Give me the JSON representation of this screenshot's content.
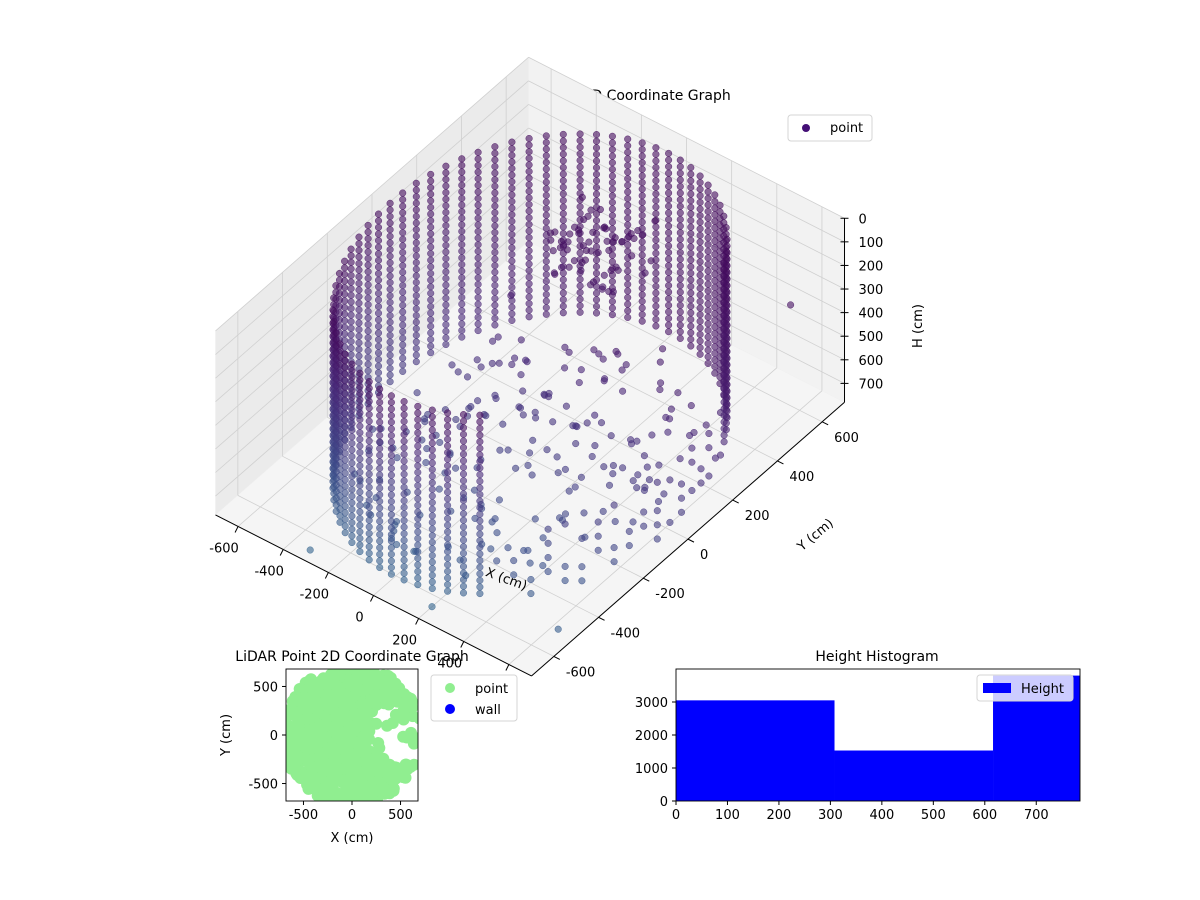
{
  "chart_data": [
    {
      "type": "scatter3d",
      "title": "LiDAR Point 3D Coordinate Graph",
      "xlabel": "X (cm)",
      "ylabel": "Y (cm)",
      "zlabel": "H (cm)",
      "xlim": [
        -700,
        700
      ],
      "ylim": [
        -700,
        700
      ],
      "zlim": [
        0,
        780
      ],
      "z_inverted": true,
      "x_ticks": [
        -600,
        -400,
        -200,
        0,
        200,
        400,
        600
      ],
      "y_ticks": [
        -600,
        -400,
        -200,
        0,
        200,
        400,
        600
      ],
      "z_ticks": [
        0,
        100,
        200,
        300,
        400,
        500,
        600,
        700
      ],
      "legend": {
        "entries": [
          "point"
        ],
        "placement": "top-right"
      },
      "grid": true,
      "colormap": "viridis",
      "marker_color": "#440f76",
      "series": [
        {
          "name": "point",
          "description_shape": "cylindrical wall of radius ~620 cm spanning heights 0-780 cm, open on the +X side, plus floor points and scattered outliers",
          "radius": 620,
          "height_range": [
            0,
            780
          ],
          "outliers": [
            [
              -560,
              480,
              760
            ],
            [
              600,
              560,
              300
            ],
            [
              640,
              -520,
              760
            ],
            [
              200,
              -640,
              780
            ],
            [
              -300,
              -680,
              750
            ]
          ]
        }
      ]
    },
    {
      "type": "scatter",
      "title": "LiDAR Point 2D Coordinate Graph",
      "xlabel": "X (cm)",
      "ylabel": "Y (cm)",
      "xlim": [
        -680,
        680
      ],
      "ylim": [
        -680,
        680
      ],
      "x_ticks": [
        -500,
        0,
        500
      ],
      "y_ticks": [
        -500,
        0,
        500
      ],
      "legend": {
        "entries": [
          "point",
          "wall"
        ],
        "placement": "outside-right"
      },
      "series": [
        {
          "name": "point",
          "color": "#90ee90"
        },
        {
          "name": "wall",
          "color": "#0000ff"
        }
      ]
    },
    {
      "type": "bar",
      "title": "Height Histogram",
      "xlim": [
        0,
        785
      ],
      "ylim": [
        0,
        4000
      ],
      "x_ticks": [
        0,
        100,
        200,
        300,
        400,
        500,
        600,
        700
      ],
      "y_ticks": [
        0,
        1000,
        2000,
        3000
      ],
      "legend": {
        "entries": [
          "Height"
        ],
        "placement": "top-right"
      },
      "color": "#0000ff",
      "bins": [
        {
          "start": 0,
          "end": 308,
          "count": 3050
        },
        {
          "start": 308,
          "end": 616,
          "count": 1530
        },
        {
          "start": 616,
          "end": 785,
          "count": 3800
        }
      ],
      "series": [
        {
          "name": "Height"
        }
      ]
    }
  ]
}
